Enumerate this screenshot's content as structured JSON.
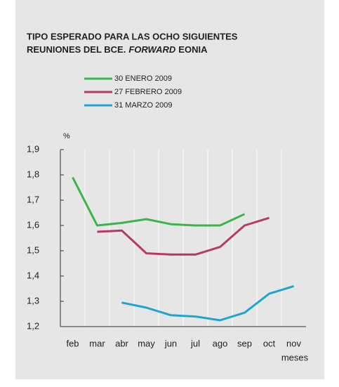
{
  "chart_data": {
    "type": "line",
    "title_parts": [
      "TIPO ESPERADO PARA LAS OCHO SIGUIENTES",
      "REUNIONES DEL BCE.",
      "FORWARD",
      "EONIA"
    ],
    "y_unit": "%",
    "x_label": "meses",
    "categories": [
      "feb",
      "mar",
      "abr",
      "may",
      "jun",
      "jul",
      "ago",
      "sep",
      "oct",
      "nov"
    ],
    "series": [
      {
        "name": "30 ENERO 2009",
        "color": "#3ab54a",
        "values": [
          1.79,
          1.6,
          1.61,
          1.625,
          1.605,
          1.6,
          1.6,
          1.645,
          null,
          null
        ]
      },
      {
        "name": "27 FEBRERO 2009",
        "color": "#b83a5e",
        "values": [
          null,
          1.575,
          1.58,
          1.49,
          1.485,
          1.485,
          1.515,
          1.6,
          1.63,
          null
        ]
      },
      {
        "name": "31 MARZO 2009",
        "color": "#1ea5cf",
        "values": [
          null,
          null,
          1.295,
          1.275,
          1.245,
          1.24,
          1.225,
          1.255,
          1.33,
          1.36
        ]
      }
    ],
    "ylim": [
      1.2,
      1.9
    ],
    "yticks": [
      {
        "value": 1.2,
        "label": "1,2"
      },
      {
        "value": 1.3,
        "label": "1,3"
      },
      {
        "value": 1.4,
        "label": "1,4"
      },
      {
        "value": 1.5,
        "label": "1,5"
      },
      {
        "value": 1.6,
        "label": "1,6"
      },
      {
        "value": 1.7,
        "label": "1,7"
      },
      {
        "value": 1.8,
        "label": "1,8"
      },
      {
        "value": 1.9,
        "label": "1,9"
      }
    ]
  }
}
